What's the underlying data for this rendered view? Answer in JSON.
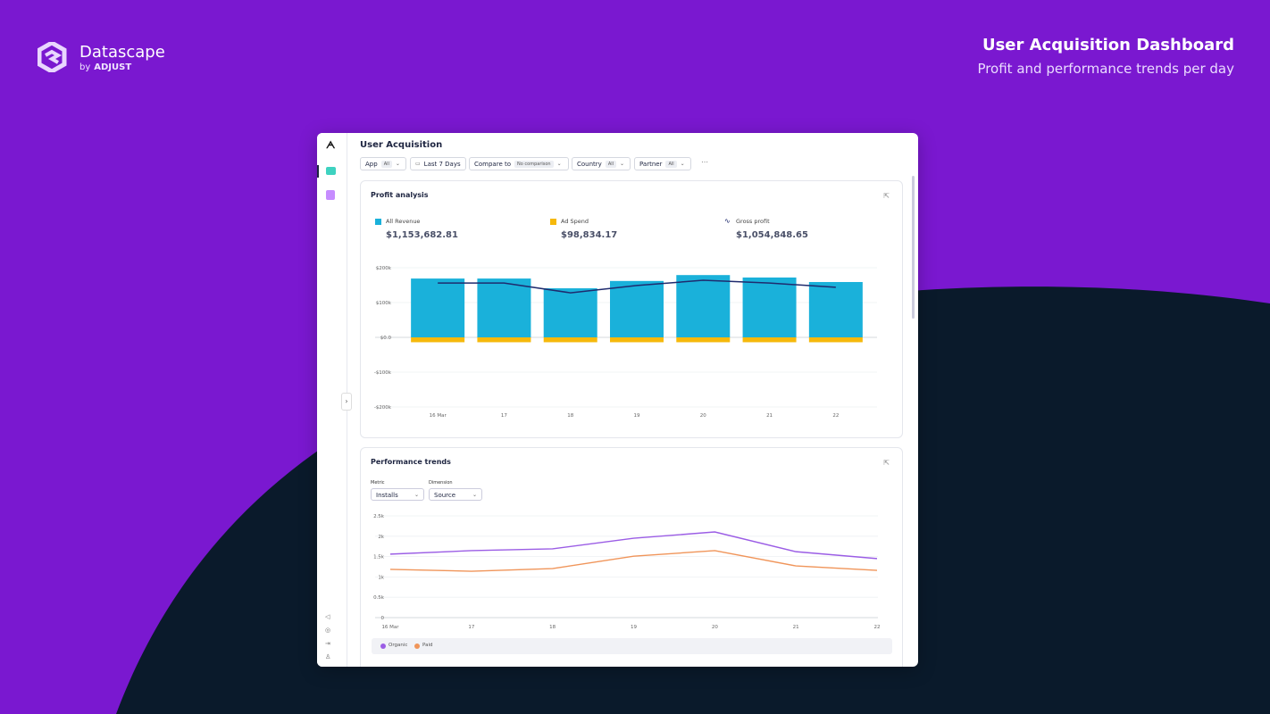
{
  "brand": {
    "name": "Datascape",
    "by": "by",
    "company": "ADJUST"
  },
  "header": {
    "title": "User Acquisition Dashboard",
    "subtitle": "Profit and performance trends per day"
  },
  "app": {
    "page_title": "User Acquisition",
    "filters": [
      {
        "label": "App",
        "value": "All"
      },
      {
        "label": "Last 7 Days"
      },
      {
        "label": "Compare to",
        "value": "No comparison"
      },
      {
        "label": "Country",
        "value": "All"
      },
      {
        "label": "Partner",
        "value": "All"
      }
    ]
  },
  "profit_analysis": {
    "title": "Profit analysis",
    "chart": {
      "type": "bar",
      "categories": [
        "16 Mar",
        "17",
        "18",
        "19",
        "20",
        "21",
        "22"
      ],
      "series": [
        {
          "name": "All Revenue",
          "total": "$1,153,682.81",
          "color": "#1ab1da",
          "type": "bar",
          "values": [
            169000,
            169000,
            141000,
            162000,
            179000,
            172000,
            159000
          ]
        },
        {
          "name": "Ad Spend",
          "total": "$98,834.17",
          "color": "#f6b90b",
          "type": "bar",
          "values": [
            -14000,
            -14000,
            -14000,
            -14000,
            -14000,
            -14000,
            -14000
          ]
        },
        {
          "name": "Gross profit",
          "total": "$1,054,848.65",
          "color": "#1f2b6e",
          "type": "line",
          "values": [
            156000,
            156000,
            128000,
            149000,
            164000,
            156000,
            144000
          ]
        }
      ],
      "ylim": [
        -200000,
        200000
      ],
      "yticks": [
        {
          "value": -200000,
          "label": "-$200k"
        },
        {
          "value": -100000,
          "label": "-$100k"
        },
        {
          "value": 0,
          "label": "$0.0"
        },
        {
          "value": 100000,
          "label": "$100k"
        },
        {
          "value": 200000,
          "label": "$200k"
        }
      ],
      "grid": true
    }
  },
  "performance_trends": {
    "title": "Performance trends",
    "controls": [
      {
        "label": "Metric",
        "value": "Installs"
      },
      {
        "label": "Dimension",
        "value": "Source"
      }
    ],
    "chart": {
      "type": "line",
      "categories": [
        "16 Mar",
        "17",
        "18",
        "19",
        "20",
        "21",
        "22"
      ],
      "series": [
        {
          "name": "Organic",
          "color": "#9b5de5",
          "values": [
            1560,
            1645,
            1690,
            1950,
            2105,
            1620,
            1450
          ]
        },
        {
          "name": "Paid",
          "color": "#f0955a",
          "values": [
            1185,
            1140,
            1205,
            1510,
            1645,
            1270,
            1160
          ]
        }
      ],
      "ylim": [
        0,
        2500
      ],
      "yticks": [
        0,
        {
          "value": 500,
          "label": "0.5k"
        },
        {
          "value": 1000,
          "label": "1k"
        },
        {
          "value": 1500,
          "label": "1.5k"
        },
        {
          "value": 2000,
          "label": "2k"
        },
        {
          "value": 2500,
          "label": "2.5k"
        }
      ],
      "grid": true
    }
  }
}
